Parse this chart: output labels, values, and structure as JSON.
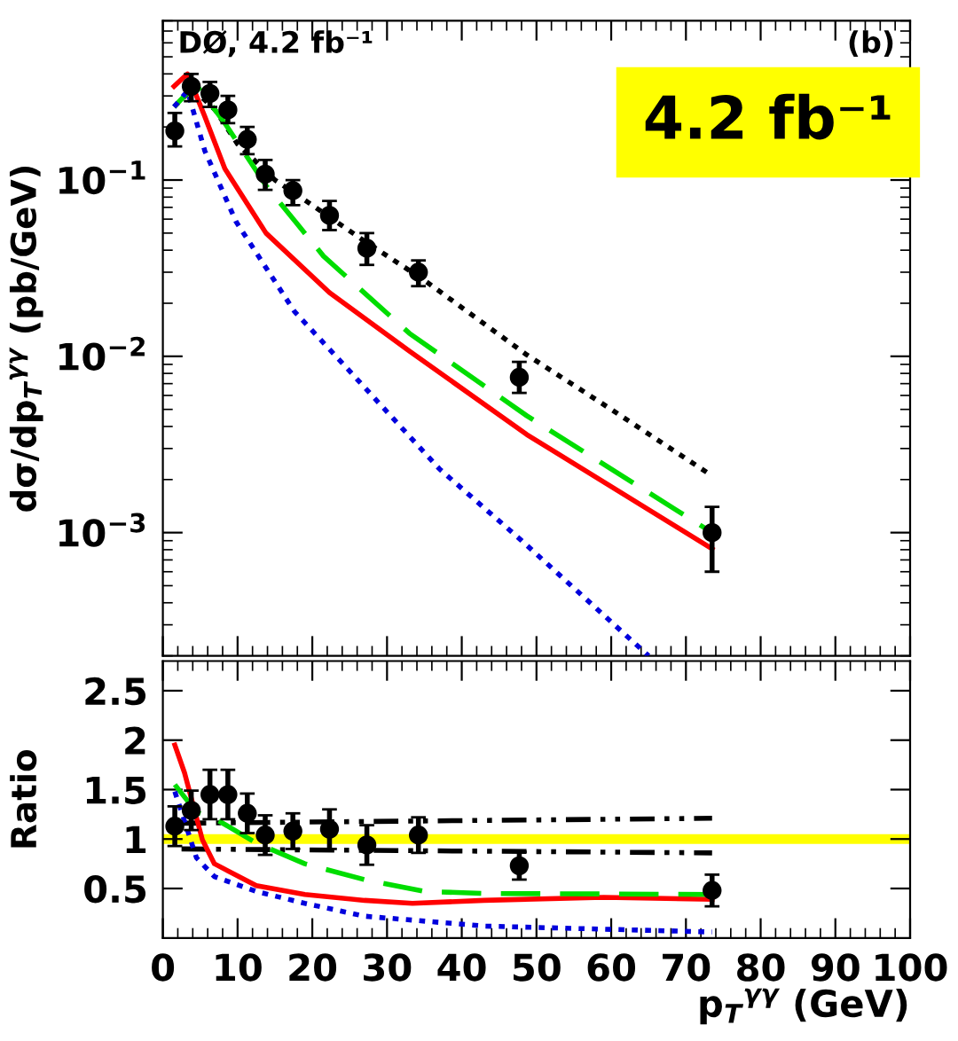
{
  "chart_data": [
    {
      "type": "line",
      "ylabel": "dσ/dp$_{T}$$^{γγ}$ (pb/GeV)",
      "log": "y",
      "xlim": [
        0,
        100
      ],
      "xticks": [
        0,
        10,
        20,
        30,
        40,
        50,
        60,
        70,
        80,
        90,
        100
      ],
      "ylim": [
        0.0002,
        0.8
      ],
      "yticks": [
        {
          "value": 0.1,
          "label": "10$^{−1}$"
        },
        {
          "value": 0.01,
          "label": "10$^{−2}$"
        },
        {
          "value": 0.001,
          "label": "10$^{−3}$"
        }
      ],
      "tick_labels": "y",
      "grid": false,
      "legend": false,
      "annotations": [
        "DØ, 4.2 fb⁻¹",
        "(b)",
        "4.2 fb⁻¹"
      ],
      "series": [
        {
          "line_style": "dotted",
          "marker": "none",
          "color": "#000000",
          "x": [
            1.5,
            4,
            7,
            10,
            15,
            20,
            27,
            35,
            48.7,
            60,
            73.5
          ],
          "values": [
            0.26,
            0.33,
            0.25,
            0.16,
            0.1,
            0.072,
            0.045,
            0.027,
            0.0102,
            0.005,
            0.0021
          ]
        },
        {
          "line_style": "solid",
          "marker": "none",
          "color": "#ff0000",
          "x": [
            1.5,
            3.3,
            5.6,
            8.3,
            13.8,
            22.3,
            33,
            48.7,
            73.5
          ],
          "values": [
            0.34,
            0.4,
            0.23,
            0.116,
            0.05,
            0.023,
            0.0107,
            0.0036,
            0.00081
          ]
        },
        {
          "line_style": "dashed",
          "marker": "none",
          "color": "#00dd00",
          "x": [
            1.5,
            4.4,
            8.3,
            13.8,
            21.5,
            33,
            48.7,
            73.5
          ],
          "values": [
            0.26,
            0.35,
            0.21,
            0.093,
            0.037,
            0.0135,
            0.0046,
            0.001
          ]
        },
        {
          "line_style": "dotted",
          "marker": "none",
          "color": "#0000dd",
          "x": [
            1.5,
            3.3,
            5.6,
            9.8,
            17.6,
            25.4,
            37,
            47.9,
            65
          ],
          "values": [
            0.26,
            0.32,
            0.147,
            0.058,
            0.018,
            0.0079,
            0.0023,
            0.00091,
            0.0002
          ]
        },
        {
          "type": "scatter",
          "marker": "circle",
          "color": "#000000",
          "x": [
            1.6,
            3.8,
            6.3,
            8.7,
            11.3,
            13.7,
            17.4,
            22.3,
            27.3,
            34.2,
            47.7,
            73.5
          ],
          "values": [
            0.19,
            0.34,
            0.31,
            0.25,
            0.17,
            0.108,
            0.087,
            0.063,
            0.041,
            0.03,
            0.0076,
            0.001
          ],
          "errors": [
            [
              0.155,
              0.24
            ],
            [
              0.28,
              0.4
            ],
            [
              0.26,
              0.36
            ],
            [
              0.21,
              0.3
            ],
            [
              0.14,
              0.2
            ],
            [
              0.088,
              0.13
            ],
            [
              0.072,
              0.1
            ],
            [
              0.052,
              0.076
            ],
            [
              0.033,
              0.05
            ],
            [
              0.025,
              0.035
            ],
            [
              0.0062,
              0.0093
            ],
            [
              0.0006,
              0.0014
            ]
          ]
        }
      ]
    },
    {
      "type": "line",
      "ylabel": "Ratio",
      "xlabel": "p$_{T}$$^{γγ}$ (GeV)",
      "xlim": [
        0,
        100
      ],
      "xticks": [
        0,
        10,
        20,
        30,
        40,
        50,
        60,
        70,
        80,
        90,
        100
      ],
      "ylim": [
        0,
        2.8
      ],
      "yticks": [
        0.5,
        1,
        1.5,
        2,
        2.5
      ],
      "grid": false,
      "legend": false,
      "bands": [
        {
          "axis": "y",
          "from": 0.95,
          "to": 1.05,
          "color": "#ffff00"
        }
      ],
      "series": [
        {
          "line_style": "dashdot",
          "marker": "none",
          "color": "#000000",
          "x": [
            2.5,
            73.5
          ],
          "values": [
            1.16,
            1.21
          ]
        },
        {
          "line_style": "dashdot",
          "marker": "none",
          "color": "#000000",
          "x": [
            2.5,
            73.5
          ],
          "values": [
            0.9,
            0.86
          ]
        },
        {
          "line_style": "solid",
          "marker": "none",
          "color": "#ff0000",
          "x": [
            1.6,
            2.9,
            5.3,
            6.9,
            12.5,
            19,
            27,
            33.4,
            43,
            59,
            73.5
          ],
          "values": [
            1.95,
            1.67,
            0.99,
            0.75,
            0.53,
            0.44,
            0.38,
            0.35,
            0.38,
            0.41,
            0.39
          ]
        },
        {
          "line_style": "dashed",
          "marker": "none",
          "color": "#00dd00",
          "x": [
            1.6,
            4.5,
            6.9,
            12.5,
            19,
            27,
            35,
            43,
            73.5
          ],
          "values": [
            1.55,
            1.27,
            1.21,
            0.96,
            0.75,
            0.59,
            0.47,
            0.45,
            0.44
          ]
        },
        {
          "line_style": "dotted",
          "marker": "none",
          "color": "#0000dd",
          "x": [
            1.6,
            2.9,
            4.5,
            6.9,
            12.5,
            19,
            27,
            43,
            73.5
          ],
          "values": [
            1.48,
            1.18,
            0.81,
            0.62,
            0.47,
            0.35,
            0.22,
            0.12,
            0.06
          ]
        },
        {
          "type": "scatter",
          "marker": "circle",
          "color": "#000000",
          "x": [
            1.6,
            3.8,
            6.3,
            8.7,
            11.3,
            13.7,
            17.4,
            22.3,
            27.3,
            34.2,
            47.7,
            73.5
          ],
          "values": [
            1.13,
            1.29,
            1.45,
            1.45,
            1.26,
            1.04,
            1.08,
            1.1,
            0.94,
            1.04,
            0.73,
            0.48
          ],
          "errors": [
            0.2,
            0.2,
            0.25,
            0.25,
            0.2,
            0.2,
            0.18,
            0.2,
            0.2,
            0.18,
            0.14,
            0.16
          ]
        }
      ]
    }
  ]
}
